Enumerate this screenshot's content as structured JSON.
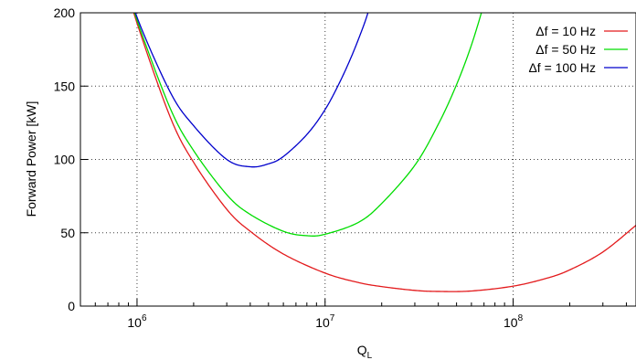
{
  "chart_data": {
    "type": "line",
    "xlabel": "Q",
    "xlabel_sub": "L",
    "ylabel": "Forward Power [kW]",
    "x_scale": "log",
    "xlim": [
      500000,
      450000000
    ],
    "ylim": [
      0,
      200
    ],
    "grid": true,
    "legend_position": "top-right",
    "x_ticks": [
      {
        "value": 1000000,
        "base": "10",
        "exp": "6"
      },
      {
        "value": 10000000,
        "base": "10",
        "exp": "7"
      },
      {
        "value": 100000000,
        "base": "10",
        "exp": "8"
      }
    ],
    "y_ticks": [
      {
        "value": 0,
        "label": "0"
      },
      {
        "value": 50,
        "label": "50"
      },
      {
        "value": 100,
        "label": "100"
      },
      {
        "value": 150,
        "label": "150"
      },
      {
        "value": 200,
        "label": "200"
      }
    ],
    "series": [
      {
        "name": "Δf = 10 Hz",
        "color": "#e31a1c",
        "x": [
          800000,
          1000000,
          1500000,
          2000000,
          3000000,
          4000000,
          6000000,
          10000000,
          15000000,
          20000000,
          30000000,
          40000000,
          60000000,
          100000000,
          150000000,
          200000000,
          300000000,
          450000000
        ],
        "values": [
          236,
          193,
          129,
          98,
          66,
          51,
          35.5,
          22.5,
          16.1,
          13.3,
          10.7,
          10.0,
          10.3,
          13.6,
          18.9,
          24.7,
          36.9,
          55.1
        ]
      },
      {
        "name": "Δf = 50 Hz",
        "color": "#00dd00",
        "x": [
          800000,
          1000000,
          1500000,
          2000000,
          3000000,
          4000000,
          6000000,
          8000000,
          10000000,
          15000000,
          20000000,
          30000000,
          40000000,
          50000000,
          60000000,
          70000000
        ],
        "values": [
          236,
          195,
          135,
          106,
          76,
          62.5,
          51,
          48,
          49,
          57,
          70,
          96,
          124,
          151,
          178,
          206
        ]
      },
      {
        "name": "Δf = 100 Hz",
        "color": "#0000cc",
        "x": [
          850000,
          1000000,
          1500000,
          2000000,
          3000000,
          4000000,
          5000000,
          6000000,
          8000000,
          10000000,
          12000000,
          14000000,
          16000000,
          17000000
        ],
        "values": [
          230,
          197,
          146,
          123,
          100,
          95,
          97,
          102,
          117,
          134,
          153,
          172,
          191,
          201
        ]
      }
    ]
  }
}
